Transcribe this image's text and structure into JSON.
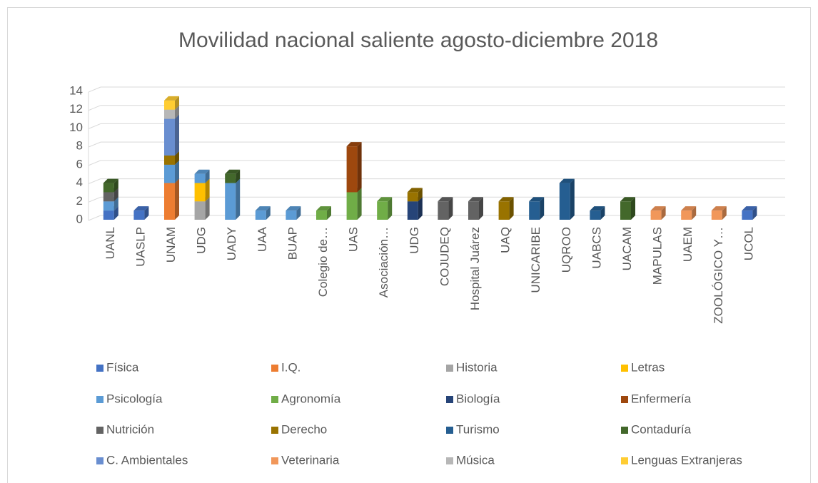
{
  "chart_data": {
    "type": "bar",
    "stacked": true,
    "title": "Movilidad nacional saliente agosto-diciembre 2018",
    "categories": [
      "UANL",
      "UASLP",
      "UNAM",
      "UDG",
      "UADY",
      "UAA",
      "BUAP",
      "Colegio de…",
      "UAS",
      "Asociación…",
      "UDG",
      "COJUDEQ",
      "Hospital Juárez",
      "UAQ",
      "UNICARIBE",
      "UQROO",
      "UABCS",
      "UACAM",
      "MAPULAS",
      "UAEM",
      "ZOOLÓGICO Y…",
      "UCOL"
    ],
    "ylim": [
      0,
      14
    ],
    "yticks": [
      0,
      2,
      4,
      6,
      8,
      10,
      12,
      14
    ],
    "grid": true,
    "legend": "bottom",
    "series": [
      {
        "name": "Física",
        "color": "#4472c4",
        "values": [
          1,
          1,
          null,
          null,
          null,
          null,
          null,
          null,
          null,
          null,
          null,
          null,
          null,
          null,
          null,
          null,
          null,
          null,
          null,
          null,
          null,
          1
        ]
      },
      {
        "name": "I.Q.",
        "color": "#ed7d31",
        "values": [
          null,
          null,
          4,
          null,
          null,
          null,
          null,
          null,
          null,
          null,
          null,
          null,
          null,
          null,
          null,
          null,
          null,
          null,
          null,
          null,
          null,
          null
        ]
      },
      {
        "name": "Historia",
        "color": "#a5a5a5",
        "values": [
          null,
          null,
          null,
          2,
          null,
          null,
          null,
          null,
          null,
          null,
          null,
          null,
          null,
          null,
          null,
          null,
          null,
          null,
          null,
          null,
          null,
          null
        ]
      },
      {
        "name": "Letras",
        "color": "#ffc000",
        "values": [
          null,
          null,
          null,
          2,
          null,
          null,
          null,
          null,
          null,
          null,
          null,
          null,
          null,
          null,
          null,
          null,
          null,
          null,
          null,
          null,
          null,
          null
        ]
      },
      {
        "name": "Psicología",
        "color": "#5b9bd5",
        "values": [
          1,
          null,
          2,
          1,
          4,
          1,
          1,
          null,
          null,
          null,
          null,
          null,
          null,
          null,
          null,
          null,
          null,
          null,
          null,
          null,
          null,
          null
        ]
      },
      {
        "name": "Agronomía",
        "color": "#70ad47",
        "values": [
          null,
          null,
          null,
          null,
          null,
          null,
          null,
          1,
          3,
          2,
          null,
          null,
          null,
          null,
          null,
          null,
          null,
          null,
          null,
          null,
          null,
          null
        ]
      },
      {
        "name": "Biología",
        "color": "#264478",
        "values": [
          null,
          null,
          null,
          null,
          null,
          null,
          null,
          null,
          null,
          null,
          2,
          null,
          null,
          null,
          null,
          null,
          null,
          null,
          null,
          null,
          null,
          null
        ]
      },
      {
        "name": "Enfermería",
        "color": "#9e480e",
        "values": [
          null,
          null,
          null,
          null,
          null,
          null,
          null,
          null,
          5,
          null,
          null,
          null,
          null,
          null,
          null,
          null,
          null,
          null,
          null,
          null,
          null,
          null
        ]
      },
      {
        "name": "Nutrición",
        "color": "#636363",
        "values": [
          1,
          null,
          null,
          null,
          null,
          null,
          null,
          null,
          null,
          null,
          null,
          2,
          2,
          null,
          null,
          null,
          null,
          null,
          null,
          null,
          null,
          null
        ]
      },
      {
        "name": "Derecho",
        "color": "#997300",
        "values": [
          null,
          null,
          1,
          null,
          null,
          null,
          null,
          null,
          null,
          null,
          1,
          null,
          null,
          2,
          null,
          null,
          null,
          null,
          null,
          null,
          null,
          null
        ]
      },
      {
        "name": "Turismo",
        "color": "#255e91",
        "values": [
          null,
          null,
          null,
          null,
          null,
          null,
          null,
          null,
          null,
          null,
          null,
          null,
          null,
          null,
          2,
          4,
          1,
          null,
          null,
          null,
          null,
          null
        ]
      },
      {
        "name": "Contaduría",
        "color": "#43682b",
        "values": [
          1,
          null,
          null,
          null,
          1,
          null,
          null,
          null,
          null,
          null,
          null,
          null,
          null,
          null,
          null,
          null,
          null,
          2,
          null,
          null,
          null,
          null
        ]
      },
      {
        "name": "C. Ambientales",
        "color": "#698ed0",
        "values": [
          null,
          null,
          4,
          null,
          null,
          null,
          null,
          null,
          null,
          null,
          null,
          null,
          null,
          null,
          null,
          null,
          null,
          null,
          null,
          null,
          null,
          null
        ]
      },
      {
        "name": "Veterinaria",
        "color": "#f1975a",
        "values": [
          null,
          null,
          null,
          null,
          null,
          null,
          null,
          null,
          null,
          null,
          null,
          null,
          null,
          null,
          null,
          null,
          null,
          null,
          1,
          1,
          1,
          null
        ]
      },
      {
        "name": "Música",
        "color": "#b7b7b7",
        "values": [
          null,
          null,
          1,
          null,
          null,
          null,
          null,
          null,
          null,
          null,
          null,
          null,
          null,
          null,
          null,
          null,
          null,
          null,
          null,
          null,
          null,
          null
        ]
      },
      {
        "name": "Lenguas Extranjeras",
        "color": "#ffcd33",
        "values": [
          null,
          null,
          1,
          null,
          null,
          null,
          null,
          null,
          null,
          null,
          null,
          null,
          null,
          null,
          null,
          null,
          null,
          null,
          null,
          null,
          null,
          null
        ]
      }
    ]
  }
}
